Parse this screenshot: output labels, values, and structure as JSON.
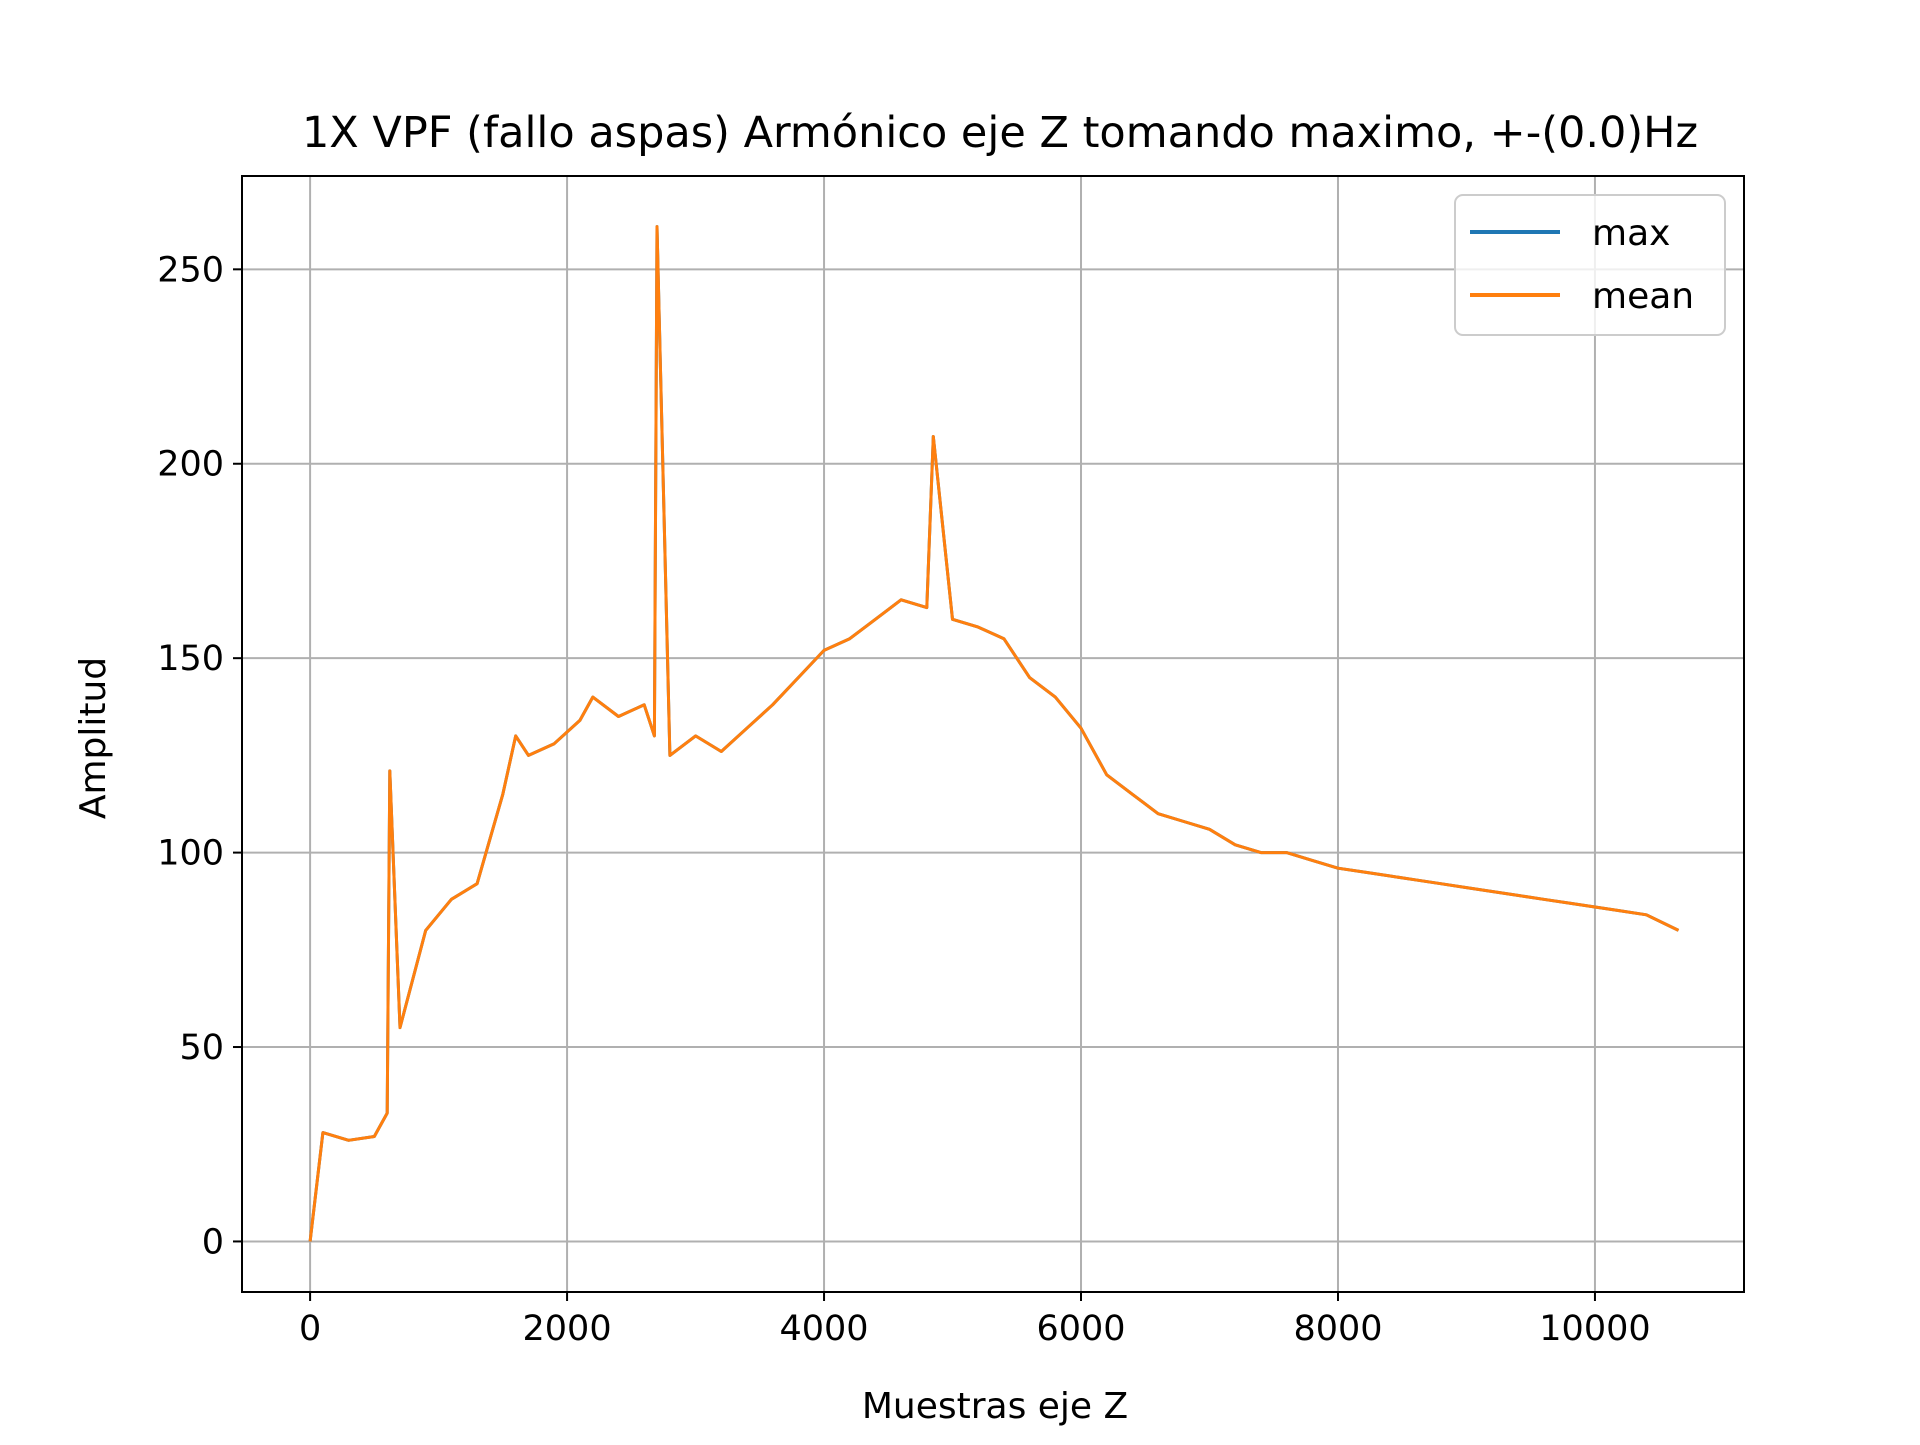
{
  "chart_data": {
    "type": "line",
    "title": "1X VPF (fallo aspas) Armónico eje Z tomando maximo, +-(0.0)Hz",
    "xlabel": "Muestras eje Z",
    "ylabel": "Amplitud",
    "xlim": [
      -530,
      11160
    ],
    "ylim": [
      -13,
      274
    ],
    "xticks": [
      0,
      2000,
      4000,
      6000,
      8000,
      10000
    ],
    "xtick_labels": [
      "0",
      "2000",
      "4000",
      "6000",
      "8000",
      "10000"
    ],
    "yticks": [
      0,
      50,
      100,
      150,
      200,
      250
    ],
    "ytick_labels": [
      "0",
      "50",
      "100",
      "150",
      "200",
      "250"
    ],
    "grid": true,
    "legend_position": "top-right",
    "colors": {
      "max": "#1f77b4",
      "mean": "#ff7f0e",
      "grid": "#b0b0b0",
      "frame": "#000000"
    },
    "series": [
      {
        "name": "max",
        "color": "#1f77b4",
        "x": [
          0,
          100,
          300,
          500,
          600,
          620,
          700,
          900,
          1100,
          1300,
          1500,
          1600,
          1700,
          1900,
          2100,
          2200,
          2400,
          2600,
          2680,
          2700,
          2800,
          3000,
          3200,
          3400,
          3600,
          3800,
          4000,
          4200,
          4400,
          4600,
          4800,
          4850,
          5000,
          5200,
          5400,
          5600,
          5800,
          6000,
          6200,
          6400,
          6600,
          6800,
          7000,
          7200,
          7400,
          7600,
          7800,
          8000,
          8200,
          8400,
          8600,
          8800,
          9000,
          9200,
          9400,
          9600,
          9800,
          10000,
          10200,
          10400,
          10650
        ],
        "values": [
          0,
          28,
          26,
          27,
          33,
          121,
          55,
          80,
          88,
          92,
          115,
          130,
          125,
          128,
          134,
          140,
          135,
          138,
          130,
          261,
          125,
          130,
          126,
          132,
          138,
          145,
          152,
          155,
          160,
          165,
          163,
          207,
          160,
          158,
          155,
          145,
          140,
          132,
          120,
          115,
          110,
          108,
          106,
          102,
          100,
          100,
          98,
          96,
          95,
          94,
          93,
          92,
          91,
          90,
          89,
          88,
          87,
          86,
          85,
          84,
          80
        ]
      },
      {
        "name": "mean",
        "color": "#ff7f0e",
        "x": [
          0,
          100,
          300,
          500,
          600,
          620,
          700,
          900,
          1100,
          1300,
          1500,
          1600,
          1700,
          1900,
          2100,
          2200,
          2400,
          2600,
          2680,
          2700,
          2800,
          3000,
          3200,
          3400,
          3600,
          3800,
          4000,
          4200,
          4400,
          4600,
          4800,
          4850,
          5000,
          5200,
          5400,
          5600,
          5800,
          6000,
          6200,
          6400,
          6600,
          6800,
          7000,
          7200,
          7400,
          7600,
          7800,
          8000,
          8200,
          8400,
          8600,
          8800,
          9000,
          9200,
          9400,
          9600,
          9800,
          10000,
          10200,
          10400,
          10650
        ],
        "values": [
          0,
          28,
          26,
          27,
          33,
          121,
          55,
          80,
          88,
          92,
          115,
          130,
          125,
          128,
          134,
          140,
          135,
          138,
          130,
          261,
          125,
          130,
          126,
          132,
          138,
          145,
          152,
          155,
          160,
          165,
          163,
          207,
          160,
          158,
          155,
          145,
          140,
          132,
          120,
          115,
          110,
          108,
          106,
          102,
          100,
          100,
          98,
          96,
          95,
          94,
          93,
          92,
          91,
          90,
          89,
          88,
          87,
          86,
          85,
          84,
          80
        ]
      }
    ]
  }
}
